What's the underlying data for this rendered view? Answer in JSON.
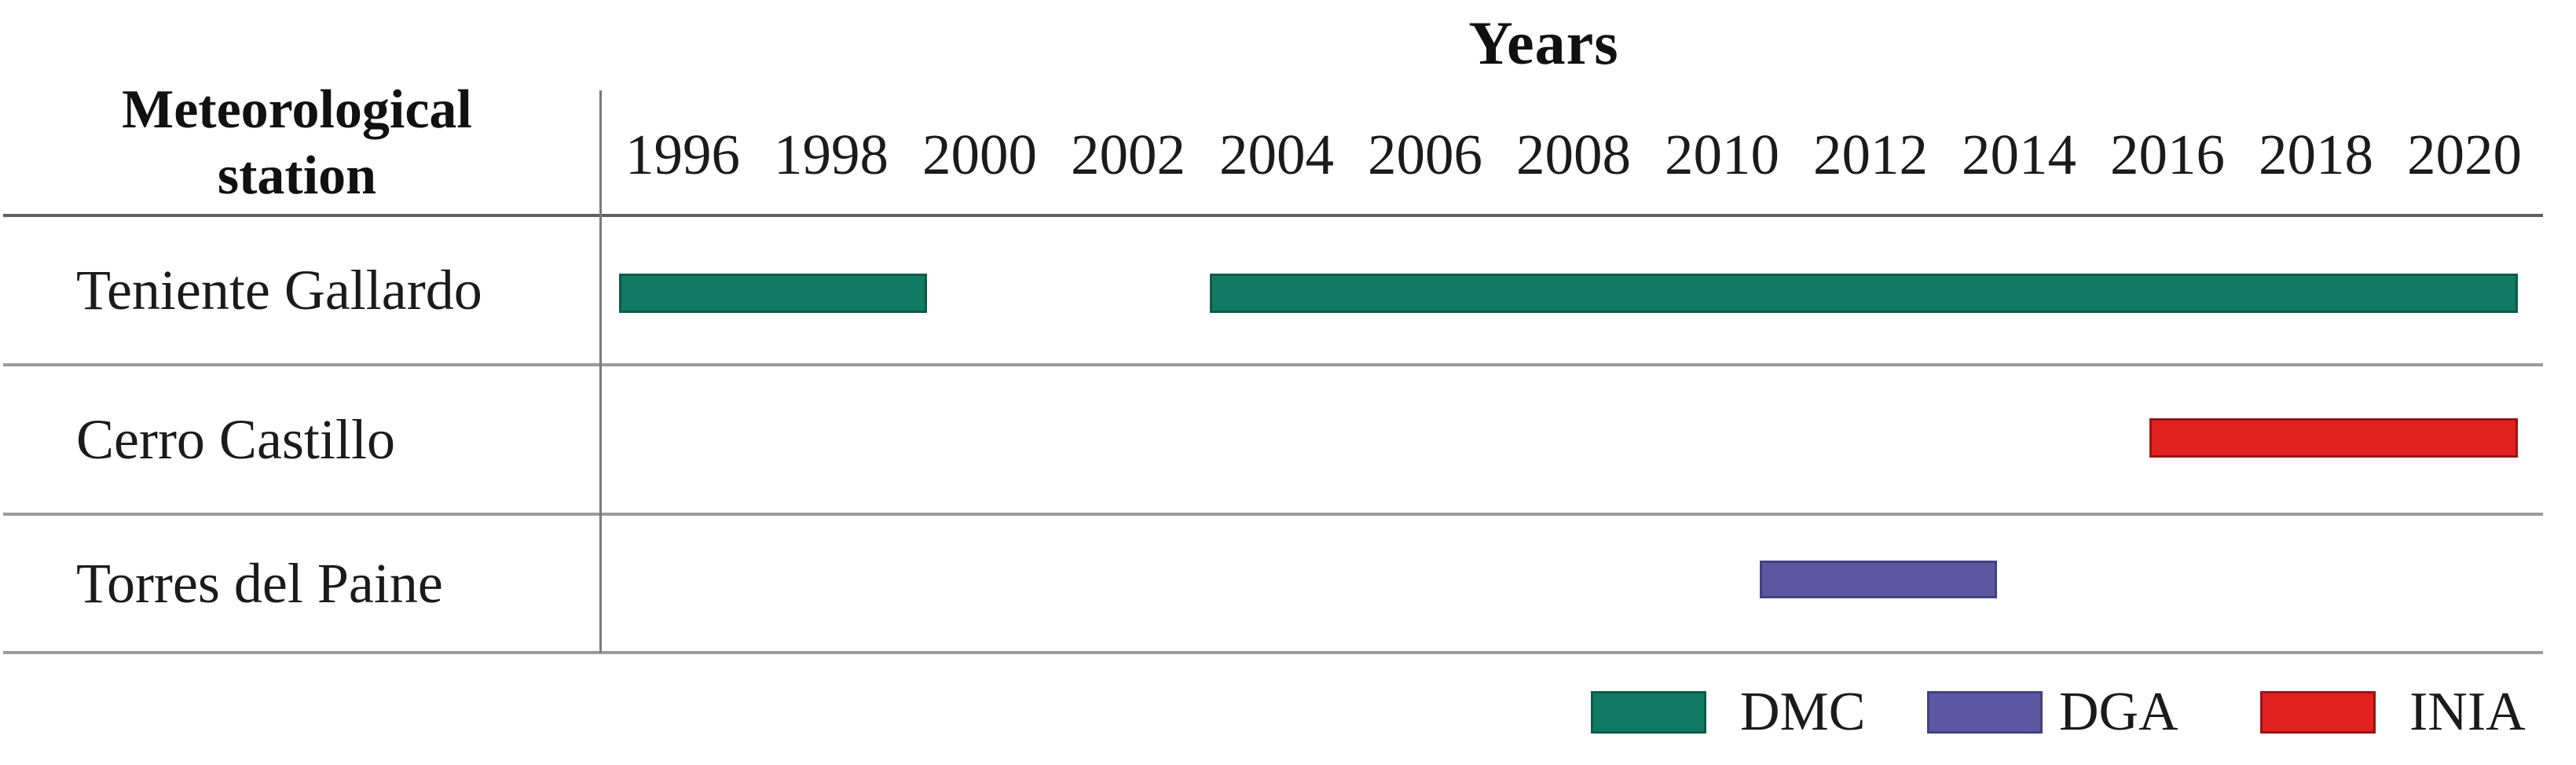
{
  "title": "Years",
  "row_axis_header": "Meteorological station",
  "colors": {
    "dmc_green": "#117a64",
    "dmc_green_border": "#0d5a49",
    "dga_purple": "#5b57a2",
    "dga_purple_border": "#434180",
    "inia_red": "#e12120",
    "inia_red_border": "#9a1414",
    "separator_gray": "#9b9b9b",
    "header_line_gray": "#5f5f5f",
    "axis_line_gray": "#7a7a7a"
  },
  "axis": {
    "ticks": [
      1996,
      1998,
      2000,
      2002,
      2004,
      2006,
      2008,
      2010,
      2012,
      2014,
      2016,
      2018,
      2020
    ]
  },
  "rows": [
    {
      "station": "Teniente Gallardo",
      "bars": [
        {
          "source": "DMC",
          "start_year": 1995.14,
          "end_year": 1999.29,
          "color_key": "dmc_green",
          "border_key": "dmc_green_border"
        },
        {
          "source": "DMC",
          "start_year": 2003.1,
          "end_year": 2020.72,
          "color_key": "dmc_green",
          "border_key": "dmc_green_border"
        }
      ]
    },
    {
      "station": "Cerro Castillo",
      "bars": [
        {
          "source": "INIA",
          "start_year": 2015.76,
          "end_year": 2020.72,
          "color_key": "inia_red",
          "border_key": "inia_red_border"
        }
      ]
    },
    {
      "station": "Torres del Paine",
      "bars": [
        {
          "source": "DGA",
          "start_year": 2010.51,
          "end_year": 2013.7,
          "color_key": "dga_purple",
          "border_key": "dga_purple_border"
        }
      ]
    }
  ],
  "legend": [
    {
      "label": "DMC",
      "color_key": "dmc_green",
      "border_key": "dmc_green_border"
    },
    {
      "label": "DGA",
      "color_key": "dga_purple",
      "border_key": "dga_purple_border"
    },
    {
      "label": "INIA",
      "color_key": "inia_red",
      "border_key": "inia_red_border"
    }
  ],
  "chart_data": {
    "type": "gantt",
    "title": "Years",
    "row_axis_label": "Meteorological station",
    "x_tick_labels": [
      1996,
      1998,
      2000,
      2002,
      2004,
      2006,
      2008,
      2010,
      2012,
      2014,
      2016,
      2018,
      2020
    ],
    "x_range_years": [
      1995,
      2021
    ],
    "rows": [
      {
        "station": "Teniente Gallardo",
        "source": "DMC",
        "intervals_years": [
          [
            1995.1,
            1999.3
          ],
          [
            2003.1,
            2020.7
          ]
        ]
      },
      {
        "station": "Cerro Castillo",
        "source": "INIA",
        "intervals_years": [
          [
            2015.8,
            2020.7
          ]
        ]
      },
      {
        "station": "Torres del Paine",
        "source": "DGA",
        "intervals_years": [
          [
            2010.5,
            2013.7
          ]
        ]
      }
    ],
    "legend_entries": [
      {
        "label": "DMC",
        "color": "#117a64"
      },
      {
        "label": "DGA",
        "color": "#5b57a2"
      },
      {
        "label": "INIA",
        "color": "#e12120"
      }
    ],
    "legend_position": "bottom-right",
    "grid": "horizontal-row-separators-only"
  }
}
